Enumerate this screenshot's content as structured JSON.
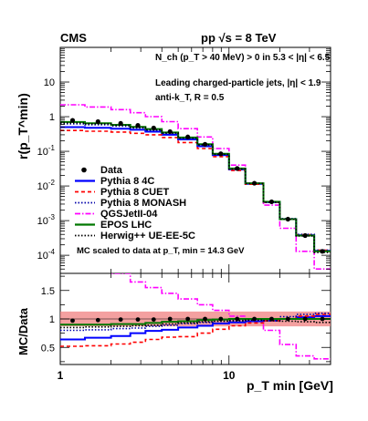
{
  "header": {
    "experiment": "CMS",
    "energy_text": "pp √s = 8 TeV"
  },
  "top_axis_label": "r(p_T^min)",
  "bottom_axis_label": "MC/Data",
  "x_axis_label": "p_T min [GeV]",
  "annotations": [
    "N_ch (p_T > 40 MeV) > 0 in 5.3 < |η| < 6.5",
    "Leading charged-particle jets, |η| < 1.9",
    "anti-k_T, R = 0.5"
  ],
  "scale_note": "MC scaled to data at p_T, min = 14.3 GeV",
  "legend": [
    {
      "label": "Data",
      "color": "#000000",
      "style": "marker"
    },
    {
      "label": "Pythia 8 4C",
      "color": "#0000ff",
      "style": "solid"
    },
    {
      "label": "Pythia 8 CUET",
      "color": "#ff0000",
      "style": "dashed"
    },
    {
      "label": "Pythia 8 MONASH",
      "color": "#0000aa",
      "style": "dotted"
    },
    {
      "label": "QGSJetII-04",
      "color": "#ff00ff",
      "style": "dashdot"
    },
    {
      "label": "EPOS LHC",
      "color": "#007700",
      "style": "solid"
    },
    {
      "label": "Herwig++ UE-EE-5C",
      "color": "#000000",
      "style": "dotted"
    }
  ],
  "chart_data": {
    "type": "line",
    "x_scale": "log",
    "xlim": [
      1,
      40
    ],
    "x_ticks": [
      "1",
      "10"
    ],
    "bins": [
      1,
      1.4,
      2,
      2.6,
      3.2,
      4,
      5,
      6.5,
      8,
      10,
      12.5,
      16,
      20,
      25,
      32,
      40
    ],
    "top_panel": {
      "y_scale": "log",
      "ylim": [
        3e-05,
        100
      ],
      "y_ticks": [
        "10^-4",
        "10^-3",
        "10^-2",
        "10^-1",
        "1",
        "10"
      ],
      "data": [
        0.78,
        0.72,
        0.64,
        0.56,
        0.47,
        0.37,
        0.26,
        0.16,
        0.085,
        0.032,
        0.012,
        0.0035,
        0.0011,
        0.00037,
        0.00013
      ],
      "series": [
        {
          "name": "Pythia 8 4C",
          "values": [
            0.5,
            0.48,
            0.45,
            0.42,
            0.37,
            0.3,
            0.22,
            0.14,
            0.078,
            0.03,
            0.0115,
            0.0034,
            0.0011,
            0.00038,
            0.000135
          ]
        },
        {
          "name": "Pythia 8 CUET",
          "values": [
            0.4,
            0.38,
            0.36,
            0.33,
            0.3,
            0.25,
            0.18,
            0.12,
            0.07,
            0.028,
            0.0112,
            0.0034,
            0.0011,
            0.00039,
            0.00014
          ]
        },
        {
          "name": "Pythia 8 MONASH",
          "values": [
            0.62,
            0.58,
            0.53,
            0.47,
            0.41,
            0.33,
            0.24,
            0.15,
            0.082,
            0.031,
            0.0118,
            0.0035,
            0.00115,
            0.0004,
            0.00014
          ]
        },
        {
          "name": "QGSJetII-04",
          "values": [
            2.2,
            1.9,
            1.6,
            1.3,
            1.0,
            0.72,
            0.45,
            0.26,
            0.12,
            0.04,
            0.012,
            0.0028,
            0.0006,
            0.00013,
            4e-05
          ]
        },
        {
          "name": "EPOS LHC",
          "values": [
            0.7,
            0.65,
            0.58,
            0.51,
            0.44,
            0.35,
            0.25,
            0.16,
            0.085,
            0.032,
            0.012,
            0.0035,
            0.0011,
            0.00037,
            0.00013
          ]
        },
        {
          "name": "Herwig++ UE-EE-5C",
          "values": [
            0.66,
            0.62,
            0.56,
            0.49,
            0.42,
            0.34,
            0.24,
            0.155,
            0.082,
            0.031,
            0.0118,
            0.0034,
            0.0011,
            0.00036,
            0.00012
          ]
        }
      ]
    },
    "ratio_panel": {
      "ylim": [
        0.2,
        1.8
      ],
      "y_ticks": [
        "0.5",
        "1",
        "1.5"
      ],
      "data_uncertainty_band": [
        0.87,
        1.13
      ],
      "data_points": [
        0.97,
        0.98,
        0.99,
        0.99,
        0.99,
        1.0,
        1.0,
        1.0,
        1.0,
        1.0,
        1.0,
        1.0,
        1.0,
        1.0,
        1.0
      ],
      "series": [
        {
          "name": "Pythia 8 4C",
          "values": [
            0.64,
            0.67,
            0.7,
            0.75,
            0.79,
            0.81,
            0.85,
            0.88,
            0.92,
            0.94,
            0.96,
            0.97,
            1.0,
            1.03,
            1.05
          ]
        },
        {
          "name": "Pythia 8 CUET",
          "values": [
            0.52,
            0.53,
            0.56,
            0.59,
            0.64,
            0.68,
            0.69,
            0.75,
            0.82,
            0.88,
            0.93,
            0.97,
            1.0,
            1.05,
            1.08
          ]
        },
        {
          "name": "Pythia 8 MONASH",
          "values": [
            0.8,
            0.81,
            0.83,
            0.84,
            0.87,
            0.89,
            0.92,
            0.94,
            0.96,
            0.97,
            0.98,
            1.0,
            1.04,
            1.08,
            1.1
          ]
        },
        {
          "name": "QGSJetII-04",
          "values": [
            1.95,
            1.9,
            1.8,
            1.65,
            1.55,
            1.45,
            1.35,
            1.25,
            1.15,
            1.05,
            1.0,
            0.8,
            0.55,
            0.35,
            0.3
          ]
        },
        {
          "name": "EPOS LHC",
          "values": [
            0.9,
            0.9,
            0.91,
            0.91,
            0.93,
            0.95,
            0.96,
            0.98,
            0.99,
            1.0,
            1.0,
            1.0,
            1.0,
            1.0,
            1.0
          ]
        },
        {
          "name": "Herwig++ UE-EE-5C",
          "values": [
            0.85,
            0.86,
            0.87,
            0.88,
            0.89,
            0.91,
            0.93,
            0.95,
            0.96,
            0.97,
            0.98,
            0.97,
            0.96,
            0.95,
            0.94
          ]
        }
      ]
    }
  }
}
